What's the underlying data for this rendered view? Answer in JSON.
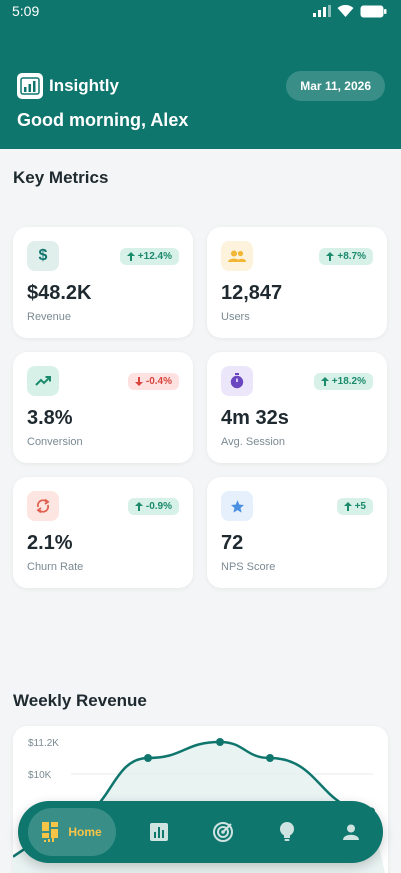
{
  "status": {
    "time": "5:09"
  },
  "header": {
    "app_name": "Insightly",
    "date": "Mar 11, 2026",
    "greeting": "Good morning, Alex"
  },
  "metrics_section": {
    "title": "Key Metrics"
  },
  "metrics": [
    {
      "icon": "dollar-icon",
      "value": "$48.2K",
      "label": "Revenue",
      "change": "+12.4%",
      "trend": "up",
      "icon_bg": "#e0eeec",
      "icon_color": "#0f766e"
    },
    {
      "icon": "users-icon",
      "value": "12,847",
      "label": "Users",
      "change": "+8.7%",
      "trend": "up",
      "icon_bg": "#fdf3dc",
      "icon_color": "#f2b534"
    },
    {
      "icon": "trending-up-icon",
      "value": "3.8%",
      "label": "Conversion",
      "change": "-0.4%",
      "trend": "down",
      "icon_bg": "#d8f1e8",
      "icon_color": "#1b8a6b"
    },
    {
      "icon": "timer-icon",
      "value": "4m 32s",
      "label": "Avg. Session",
      "change": "+18.2%",
      "trend": "up",
      "icon_bg": "#ece6fb",
      "icon_color": "#6b46c1"
    },
    {
      "icon": "sync-icon",
      "value": "2.1%",
      "label": "Churn Rate",
      "change": "-0.9%",
      "trend": "up",
      "icon_bg": "#fde5e2",
      "icon_color": "#e0614f"
    },
    {
      "icon": "star-icon",
      "value": "72",
      "label": "NPS Score",
      "change": "+5",
      "trend": "up",
      "icon_bg": "#e6f0fd",
      "icon_color": "#4a90e2"
    }
  ],
  "revenue_section": {
    "title": "Weekly Revenue"
  },
  "chart_data": {
    "type": "line",
    "y_ticks": [
      "$11.2K",
      "$10K"
    ],
    "values_visible_k": [
      8.4,
      10.6,
      11.2,
      10.6,
      8.6
    ]
  },
  "nav": {
    "home_label": "Home",
    "items": [
      "chart-icon",
      "radar-icon",
      "lightbulb-icon",
      "profile-icon"
    ]
  },
  "colors": {
    "primary": "#0f766e",
    "accent": "#f6c547"
  }
}
